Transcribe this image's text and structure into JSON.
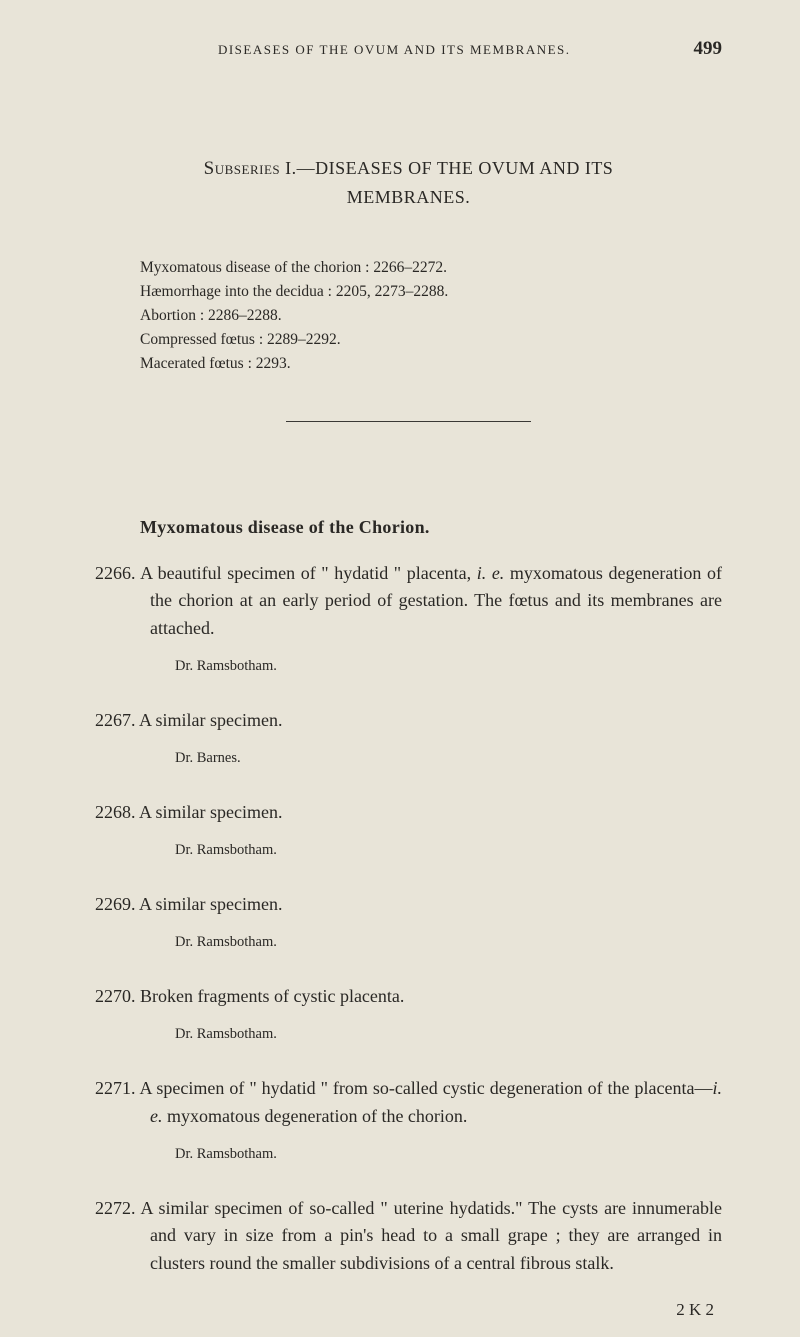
{
  "page": {
    "running_title": "DISEASES OF THE OVUM AND ITS MEMBRANES.",
    "number": "499",
    "signature": "2 K 2"
  },
  "colors": {
    "background": "#e8e4d8",
    "text": "#2a2825",
    "rule": "#3a3835"
  },
  "typography": {
    "body_family": "Georgia, 'Times New Roman', serif",
    "body_size_pt": 18,
    "index_size_pt": 15.5,
    "attribution_size_pt": 14.5,
    "running_title_size_pt": 13
  },
  "section": {
    "label_prefix": "Subseries",
    "label_roman": "I.",
    "title_upper": "—DISEASES OF THE OVUM AND ITS",
    "title_line2": "MEMBRANES."
  },
  "index_lines": [
    "Myxomatous disease of the chorion : 2266–2272.",
    "Hæmorrhage into the decidua : 2205, 2273–2288.",
    "Abortion : 2286–2288.",
    "Compressed fœtus : 2289–2292.",
    "Macerated fœtus : 2293."
  ],
  "subheading": "Myxomatous disease of the Chorion.",
  "entries": [
    {
      "num": "2266.",
      "text": "A beautiful specimen of \" hydatid \" placenta, i. e. myxomatous degeneration of the chorion at an early period of gestation. The fœtus and its membranes are attached.",
      "attribution": "Dr. Ramsbotham."
    },
    {
      "num": "2267.",
      "text": "A similar specimen.",
      "attribution": "Dr. Barnes."
    },
    {
      "num": "2268.",
      "text": "A similar specimen.",
      "attribution": "Dr. Ramsbotham."
    },
    {
      "num": "2269.",
      "text": "A similar specimen.",
      "attribution": "Dr. Ramsbotham."
    },
    {
      "num": "2270.",
      "text": "Broken fragments of cystic placenta.",
      "attribution": "Dr. Ramsbotham."
    },
    {
      "num": "2271.",
      "text": "A specimen of \" hydatid \" from so-called cystic degeneration of the placenta—i. e. myxomatous degeneration of the chorion.",
      "attribution": "Dr. Ramsbotham."
    },
    {
      "num": "2272.",
      "text": "A similar specimen of so-called \" uterine hydatids.\" The cysts are innumerable and vary in size from a pin's head to a small grape ; they are arranged in clusters round the smaller subdivisions of a central fibrous stalk.",
      "attribution": null
    }
  ]
}
